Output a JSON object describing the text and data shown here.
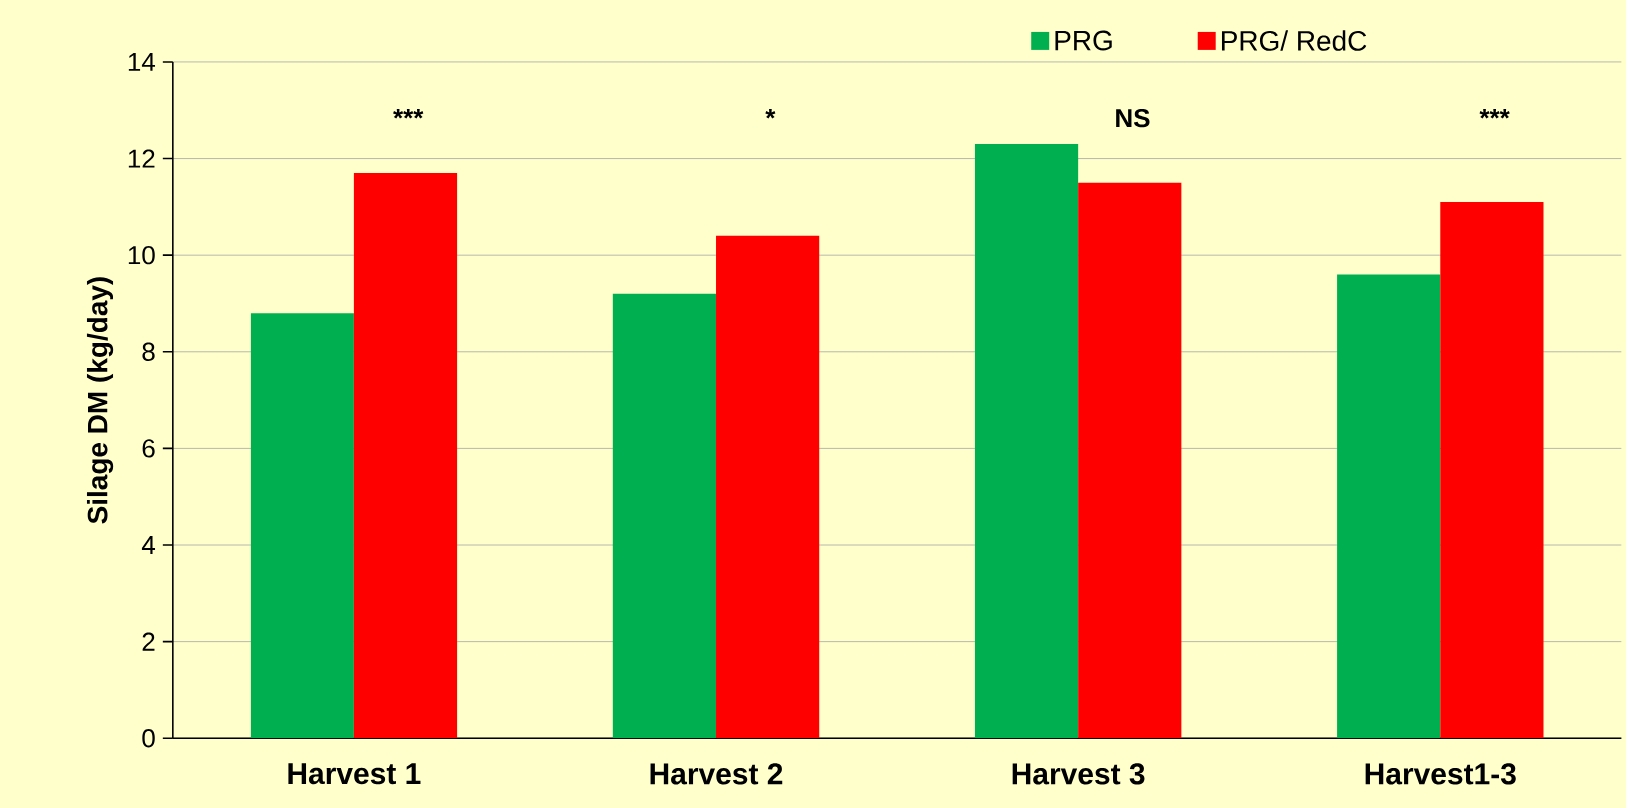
{
  "chart_data": {
    "type": "bar",
    "ylabel": "Silage DM (kg/day)",
    "categories": [
      "Harvest 1",
      "Harvest 2",
      "Harvest 3",
      "Harvest1-3"
    ],
    "series": [
      {
        "name": "PRG",
        "color": "#00b050",
        "values": [
          8.8,
          9.2,
          12.3,
          9.6
        ]
      },
      {
        "name": "PRG/ RedC",
        "color": "#ff0000",
        "values": [
          11.7,
          10.4,
          11.5,
          11.1
        ]
      }
    ],
    "ylim": [
      0,
      14
    ],
    "yticks": [
      0,
      2,
      4,
      6,
      8,
      10,
      12,
      14
    ],
    "grid": "y",
    "legend": "top",
    "annotations": [
      "***",
      "*",
      "NS",
      "***"
    ]
  }
}
